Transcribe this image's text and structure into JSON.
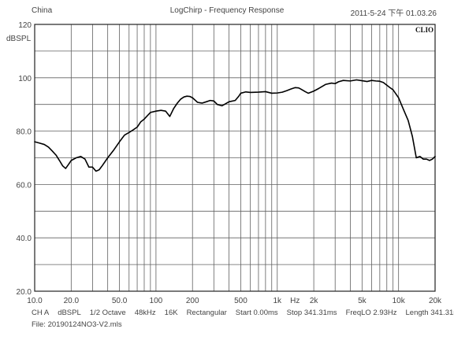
{
  "header": {
    "left": "China",
    "title": "LogChirp - Frequency Response",
    "datetime": "2011-5-24 下午 01.03.26"
  },
  "brand": "CLIO",
  "chart_data": {
    "type": "line",
    "title": "LogChirp - Frequency Response",
    "xlabel": "Hz",
    "ylabel": "dBSPL",
    "x_scale": "log",
    "xlim": [
      10,
      20000
    ],
    "ylim": [
      20,
      120
    ],
    "grid": true,
    "y_ticks": [
      20,
      40,
      60,
      80,
      100,
      120
    ],
    "y_tick_labels": [
      "20.0",
      "40.0",
      "60.0",
      "80.0",
      "100",
      "120"
    ],
    "x_tick_values": [
      10,
      20,
      50,
      100,
      200,
      500,
      1000,
      2000,
      5000,
      10000,
      20000
    ],
    "x_tick_labels": [
      "10.0",
      "20.0",
      "50.0",
      "100",
      "200",
      "500",
      "1k",
      "2k",
      "5k",
      "10k",
      "20k"
    ],
    "x_unit_label_at": 1400,
    "series": [
      {
        "x": [
          10,
          11,
          12,
          13,
          14,
          15,
          16,
          17,
          18,
          19,
          20,
          22,
          24,
          26,
          28,
          30,
          32,
          34,
          36,
          40,
          45,
          50,
          55,
          60,
          65,
          70,
          75,
          80,
          90,
          100,
          110,
          120,
          130,
          140,
          150,
          160,
          170,
          180,
          190,
          200,
          220,
          240,
          260,
          280,
          300,
          320,
          350,
          400,
          450,
          480,
          500,
          550,
          600,
          700,
          800,
          900,
          1000,
          1100,
          1200,
          1300,
          1400,
          1500,
          1600,
          1700,
          1800,
          2000,
          2200,
          2500,
          2800,
          3000,
          3200,
          3500,
          4000,
          4500,
          5000,
          5500,
          6000,
          6500,
          7000,
          7500,
          8000,
          8500,
          9000,
          10000,
          11000,
          12000,
          13000,
          14000,
          15000,
          16000,
          17000,
          18000,
          19000,
          20000
        ],
        "y": [
          76,
          75.5,
          75,
          74,
          72.5,
          71,
          69,
          67,
          66,
          67.5,
          69,
          70,
          70.5,
          69.5,
          66.5,
          66.5,
          65,
          65.5,
          67,
          70,
          73,
          76,
          78.5,
          79.5,
          80.5,
          81.5,
          83.5,
          84.5,
          87,
          87.5,
          87.8,
          87.5,
          85.5,
          88.5,
          90.5,
          92,
          92.8,
          93.1,
          93,
          92.5,
          90.8,
          90.5,
          91,
          91.5,
          91.3,
          90,
          89.5,
          91,
          91.5,
          93,
          94.2,
          94.7,
          94.5,
          94.6,
          94.8,
          94.2,
          94.3,
          94.6,
          95.2,
          95.8,
          96.3,
          96.2,
          95.5,
          94.8,
          94.2,
          95,
          96,
          97.5,
          98,
          97.8,
          98.5,
          99,
          98.8,
          99.2,
          98.9,
          98.6,
          99,
          98.8,
          98.7,
          98.2,
          97.2,
          96.3,
          95.5,
          92.5,
          88,
          84,
          78,
          70,
          70.5,
          69.5,
          69.5,
          69,
          69.5,
          70.5
        ]
      }
    ]
  },
  "footer": {
    "params": [
      "CH A",
      "dBSPL",
      "1/2 Octave",
      "48kHz",
      "16K",
      "Rectangular",
      "Start 0.00ms",
      "Stop 341.31ms",
      "FreqLO 2.93Hz",
      "Length 341.31ms"
    ],
    "file": "File: 20190124NO3-V2.mls"
  }
}
